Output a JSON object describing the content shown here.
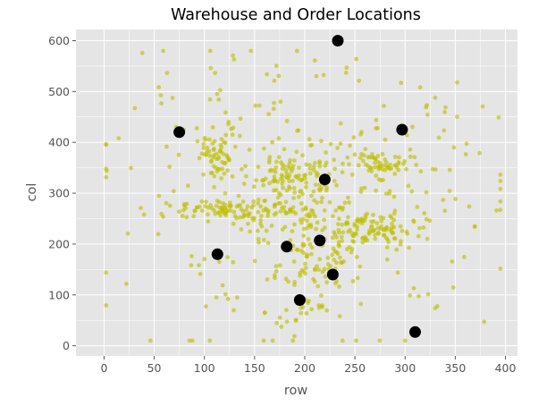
{
  "chart_data": {
    "type": "scatter",
    "title": "Warehouse and Order Locations",
    "xlabel": "row",
    "ylabel": "col",
    "xlim": [
      -28,
      412
    ],
    "ylim": [
      -20,
      622
    ],
    "xticks": [
      0,
      50,
      100,
      150,
      200,
      250,
      300,
      350,
      400
    ],
    "yticks": [
      0,
      100,
      200,
      300,
      400,
      500,
      600
    ],
    "grid": true,
    "colors": {
      "background": "#e5e5e5",
      "grid": "#ffffff",
      "orders": "#bfbf00",
      "warehouses": "#000000"
    },
    "series": [
      {
        "name": "orders",
        "marker": "small-yellow-dot",
        "clusters": [
          {
            "center": [
              113,
              370
            ],
            "spread": [
              11,
              22
            ],
            "count": 55
          },
          {
            "center": [
              117,
              268
            ],
            "spread": [
              20,
              8
            ],
            "count": 65
          },
          {
            "center": [
              193,
              336
            ],
            "spread": [
              20,
              22
            ],
            "count": 75
          },
          {
            "center": [
              187,
              258
            ],
            "spread": [
              28,
              20
            ],
            "count": 65
          },
          {
            "center": [
              265,
              228
            ],
            "spread": [
              22,
              16
            ],
            "count": 95
          },
          {
            "center": [
              275,
              357
            ],
            "spread": [
              15,
              12
            ],
            "count": 55
          },
          {
            "center": [
              210,
              160
            ],
            "spread": [
              28,
              30
            ],
            "count": 55
          },
          {
            "center": [
              200,
              75
            ],
            "spread": [
              20,
              25
            ],
            "count": 25
          },
          {
            "center": [
              200,
              300
            ],
            "spread": [
              95,
              125
            ],
            "count": 330
          }
        ]
      },
      {
        "name": "warehouses",
        "marker": "large-black-dot",
        "x": [
          233,
          75,
          297,
          220,
          215,
          182,
          113,
          228,
          195,
          310
        ],
        "y": [
          600,
          420,
          425,
          327,
          207,
          195,
          180,
          140,
          90,
          27
        ]
      }
    ]
  }
}
